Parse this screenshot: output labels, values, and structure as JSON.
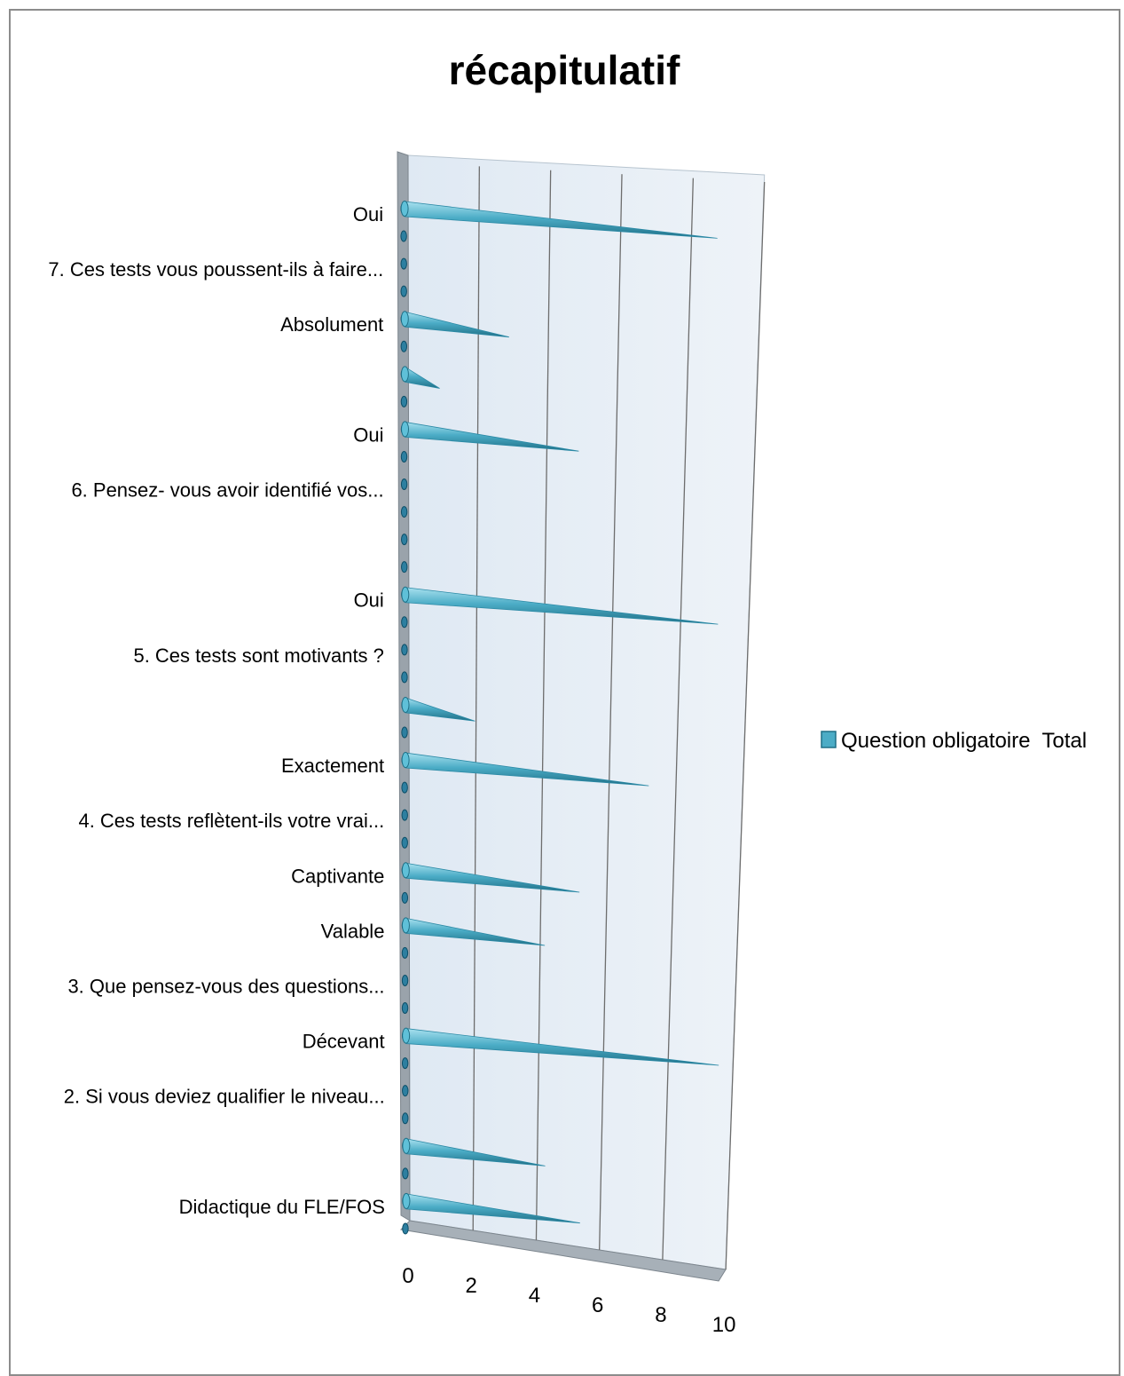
{
  "chart_data": {
    "type": "bar",
    "style": "3d-cone-horizontal",
    "title": "récapitulatif",
    "xlim": [
      0,
      10
    ],
    "x_ticks": [
      "0",
      "2",
      "4",
      "6",
      "8",
      "10"
    ],
    "grid": true,
    "legend_position": "right",
    "categories": [
      "Oui",
      "7. Ces tests vous poussent-ils à faire...",
      "Absolument",
      "",
      "Oui",
      "6. Pensez- vous avoir identifié vos...",
      "",
      "Oui",
      "5. Ces tests sont motivants ?",
      "",
      "Exactement",
      "4. Ces tests reflètent-ils votre vrai...",
      "Captivante",
      "Valable",
      "3. Que pensez-vous des questions...",
      "Décevant",
      "2. Si vous deviez qualifier le niveau...",
      "",
      "Didactique du FLE/FOS"
    ],
    "series": [
      {
        "name": "Question obligatoire  Total",
        "color": "#4bacc6",
        "values": [
          9,
          0,
          3,
          1,
          5,
          0,
          0,
          9,
          0,
          2,
          7,
          0,
          5,
          4,
          0,
          9,
          0,
          4,
          5
        ]
      }
    ]
  }
}
